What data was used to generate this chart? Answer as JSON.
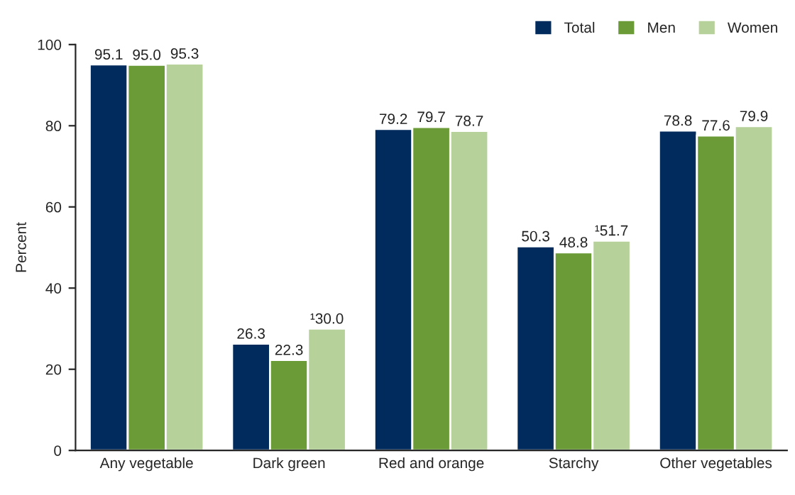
{
  "chart_data": {
    "type": "bar",
    "ylabel": "Percent",
    "categories": [
      "Any vegetable",
      "Dark green",
      "Red and orange",
      "Starchy",
      "Other vegetables"
    ],
    "series": [
      {
        "name": "Total",
        "color": "#002b5c",
        "values": [
          95.1,
          26.3,
          79.2,
          50.3,
          78.8
        ],
        "value_labels": [
          "95.1",
          "26.3",
          "79.2",
          "50.3",
          "78.8"
        ]
      },
      {
        "name": "Men",
        "color": "#6b9b37",
        "values": [
          95.0,
          22.3,
          79.7,
          48.8,
          77.6
        ],
        "value_labels": [
          "95.0",
          "22.3",
          "79.7",
          "48.8",
          "77.6"
        ]
      },
      {
        "name": "Women",
        "color": "#b6d19a",
        "values": [
          95.3,
          30.0,
          78.7,
          51.7,
          79.9
        ],
        "value_labels": [
          "95.3",
          "¹30.0",
          "78.7",
          "¹51.7",
          "79.9"
        ]
      }
    ],
    "ylim": [
      0,
      100
    ],
    "yticks": [
      0,
      20,
      40,
      60,
      80,
      100
    ],
    "grid": false,
    "legend": "top right"
  }
}
